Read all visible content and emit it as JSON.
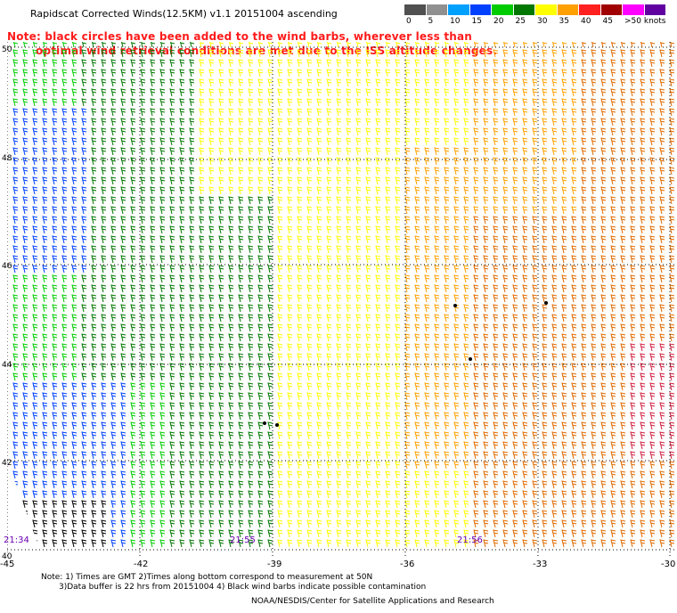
{
  "title": "Rapidscat Corrected Winds(12.5KM) v1.1 20151004 ascending",
  "note_line1": "Note: black circles have been added to the wind barbs, wherever less than",
  "note_line2": "optimal wind retrieval conditions are met due to the ISS altitude changes.",
  "legend": {
    "labels": [
      "0",
      "5",
      "10",
      "15",
      "20",
      "25",
      "30",
      "35",
      "40",
      "45",
      ">50 knots"
    ],
    "colors": [
      "#505050",
      "#909090",
      "#00a0ff",
      "#0040ff",
      "#00cc00",
      "#007700",
      "#ffff00",
      "#ffa000",
      "#ff2020",
      "#a00000",
      "#ff00ff",
      "#6000a0"
    ]
  },
  "map": {
    "x_ticks": [
      "-45",
      "-42",
      "-39",
      "-36",
      "-33",
      "-30"
    ],
    "y_ticks": [
      "50",
      "48",
      "46",
      "44",
      "42",
      "40"
    ],
    "time_labels": [
      "21:34",
      "21:55",
      "21:56"
    ]
  },
  "footer_line1": "Note: 1) Times are GMT 2)Times along bottom correspond to measurement at 50N",
  "footer_line2": "3)Data buffer is 22 hrs from 20151004 4) Black wind barbs indicate possible contamination",
  "footer_line3": "NOAA/NESDIS/Center for Satellite Applications and Research"
}
